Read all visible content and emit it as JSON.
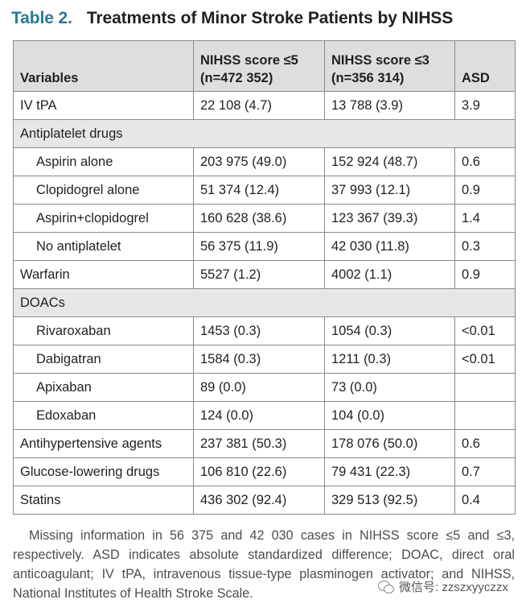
{
  "title": {
    "label": "Table 2.",
    "text": "Treatments of Minor Stroke Patients by NIHSS"
  },
  "table": {
    "headers": [
      "Variables",
      "NIHSS score ≤5\n(n=472 352)",
      "NIHSS score ≤3\n(n=356 314)",
      "ASD"
    ],
    "rows": [
      {
        "type": "row",
        "cells": [
          "IV tPA",
          "22 108 (4.7)",
          "13 788 (3.9)",
          "3.9"
        ]
      },
      {
        "type": "section",
        "label": "Antiplatelet drugs"
      },
      {
        "type": "row",
        "indent": true,
        "cells": [
          "Aspirin alone",
          "203 975 (49.0)",
          "152 924 (48.7)",
          "0.6"
        ]
      },
      {
        "type": "row",
        "indent": true,
        "cells": [
          "Clopidogrel alone",
          "51 374 (12.4)",
          "37 993 (12.1)",
          "0.9"
        ]
      },
      {
        "type": "row",
        "indent": true,
        "cells": [
          "Aspirin+clopidogrel",
          "160 628 (38.6)",
          "123 367 (39.3)",
          "1.4"
        ]
      },
      {
        "type": "row",
        "indent": true,
        "cells": [
          "No antiplatelet",
          "56 375 (11.9)",
          "42 030 (11.8)",
          "0.3"
        ]
      },
      {
        "type": "row",
        "cells": [
          "Warfarin",
          "5527 (1.2)",
          "4002 (1.1)",
          "0.9"
        ]
      },
      {
        "type": "section",
        "label": "DOACs"
      },
      {
        "type": "row",
        "indent": true,
        "cells": [
          "Rivaroxaban",
          "1453 (0.3)",
          "1054 (0.3)",
          "<0.01"
        ]
      },
      {
        "type": "row",
        "indent": true,
        "cells": [
          "Dabigatran",
          "1584 (0.3)",
          "1211 (0.3)",
          "<0.01"
        ]
      },
      {
        "type": "row",
        "indent": true,
        "cells": [
          "Apixaban",
          "89 (0.0)",
          "73 (0.0)",
          ""
        ]
      },
      {
        "type": "row",
        "indent": true,
        "cells": [
          "Edoxaban",
          "124 (0.0)",
          "104 (0.0)",
          ""
        ]
      },
      {
        "type": "row",
        "cells": [
          "Antihypertensive agents",
          "237 381 (50.3)",
          "178 076 (50.0)",
          "0.6"
        ]
      },
      {
        "type": "row",
        "cells": [
          "Glucose-lowering drugs",
          "106 810 (22.6)",
          "79 431 (22.3)",
          "0.7"
        ]
      },
      {
        "type": "row",
        "cells": [
          "Statins",
          "436 302 (92.4)",
          "329 513 (92.5)",
          "0.4"
        ]
      }
    ]
  },
  "footnote": "Missing information in 56 375 and 42 030 cases in NIHSS score ≤5 and ≤3, respectively. ASD indicates absolute standardized difference; DOAC, direct oral anticoagulant; IV tPA, intravenous tissue-type plasminogen activator; and NIHSS, National Institutes of Health Stroke Scale.",
  "watermark": {
    "icon": "wechat-icon",
    "text": "微信号: zzszxyyczzx"
  }
}
